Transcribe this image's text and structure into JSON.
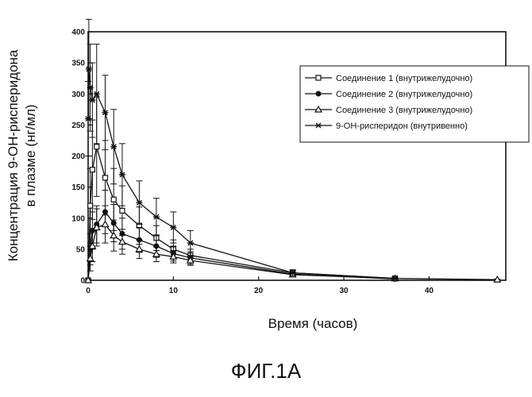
{
  "figure_caption": "ФИГ.1А",
  "chart_data": {
    "type": "line",
    "xlabel": "Время (часов)",
    "ylabel": [
      "Концентрация 9-ОН-рисперидона",
      "в плазме (нг/мл)"
    ],
    "xlim": [
      0,
      49
    ],
    "ylim": [
      0,
      400
    ],
    "x_ticks": [
      0,
      10,
      20,
      30,
      40
    ],
    "y_ticks": [
      0,
      50,
      100,
      150,
      200,
      250,
      300,
      350,
      400
    ],
    "grid": false,
    "legend_position": "top-right",
    "series": [
      {
        "name": "Соединение 1 (внутрижелудочно)",
        "marker": "square",
        "x": [
          0,
          0.25,
          0.5,
          1,
          2,
          3,
          4,
          6,
          8,
          10,
          12,
          24,
          36
        ],
        "y": [
          0,
          120,
          178,
          215,
          165,
          130,
          112,
          88,
          68,
          50,
          40,
          12,
          3
        ],
        "err": [
          0,
          60,
          80,
          80,
          60,
          50,
          40,
          30,
          20,
          15,
          10,
          4,
          2
        ]
      },
      {
        "name": "Соединение 2 (внутрижелудочно)",
        "marker": "filled-circle",
        "x": [
          0,
          0.25,
          0.5,
          1,
          2,
          3,
          4,
          6,
          8,
          10,
          12,
          24,
          36
        ],
        "y": [
          0,
          50,
          80,
          90,
          110,
          92,
          75,
          65,
          55,
          43,
          36,
          10,
          2
        ],
        "err": [
          0,
          25,
          30,
          30,
          35,
          30,
          25,
          20,
          18,
          12,
          10,
          4,
          2
        ]
      },
      {
        "name": "Соединение 3 (внутрижелудочно)",
        "marker": "triangle",
        "x": [
          0,
          0.25,
          0.5,
          1,
          2,
          3,
          4,
          6,
          8,
          10,
          12,
          24,
          36,
          48
        ],
        "y": [
          0,
          35,
          55,
          85,
          90,
          72,
          62,
          50,
          42,
          38,
          32,
          9,
          3,
          1
        ],
        "err": [
          0,
          20,
          25,
          30,
          30,
          25,
          20,
          15,
          12,
          10,
          8,
          3,
          2,
          1
        ]
      },
      {
        "name": "9-ОН-рисперидон (внутривенно)",
        "marker": "asterisk",
        "x": [
          0,
          0.083,
          0.25,
          0.5,
          1,
          2,
          3,
          4,
          6,
          8,
          10,
          12,
          24,
          36
        ],
        "y": [
          260,
          340,
          310,
          290,
          300,
          270,
          215,
          170,
          125,
          102,
          85,
          60,
          12,
          3
        ],
        "err": [
          60,
          80,
          70,
          60,
          80,
          60,
          60,
          50,
          35,
          30,
          25,
          20,
          5,
          2
        ]
      }
    ]
  }
}
